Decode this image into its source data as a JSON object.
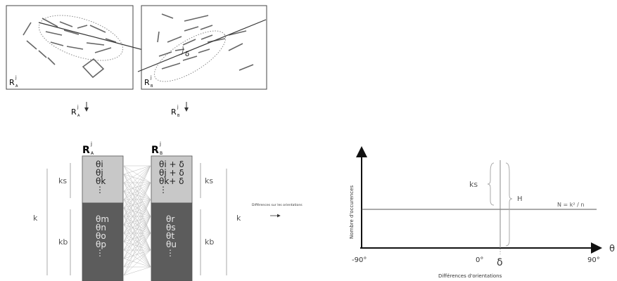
{
  "panels": {
    "a_label": "R",
    "a_sup": "j",
    "a_sub": "A",
    "b_label": "R",
    "b_sup": "j",
    "b_sub": "B",
    "delta": "δ"
  },
  "arrows": {
    "a_label": "R",
    "a_sup": "j",
    "a_sub": "A",
    "b_label": "R",
    "b_sup": "j",
    "b_sub": "B"
  },
  "columns": {
    "a_header": "R",
    "a_sup": "j",
    "a_sub": "A",
    "b_header": "R",
    "b_sup": "j",
    "b_sub": "B",
    "a_top": [
      "θi",
      "θj",
      "θk",
      "⋮"
    ],
    "a_bottom": [
      "θm",
      "θn",
      "θo",
      "θp",
      "⋮"
    ],
    "b_top": [
      "θi + δ",
      "θj + δ",
      "θk+ δ",
      "⋮"
    ],
    "b_bottom": [
      "θr",
      "θs",
      "θt",
      "θu",
      "⋮"
    ],
    "k": "k",
    "ks": "ks",
    "kb": "kb"
  },
  "middle_label": "Différences sur les orientations",
  "middle_arrow": "⟶",
  "chart": {
    "ylabel": "Nombre d'occurences",
    "xlabel": "Différences d'orientations",
    "axis_var": "θ",
    "ticks": [
      "-90°",
      "0°",
      "δ",
      "90°"
    ],
    "ks_label": "ks",
    "h_label": "H",
    "n_label": "N = k² / n"
  }
}
